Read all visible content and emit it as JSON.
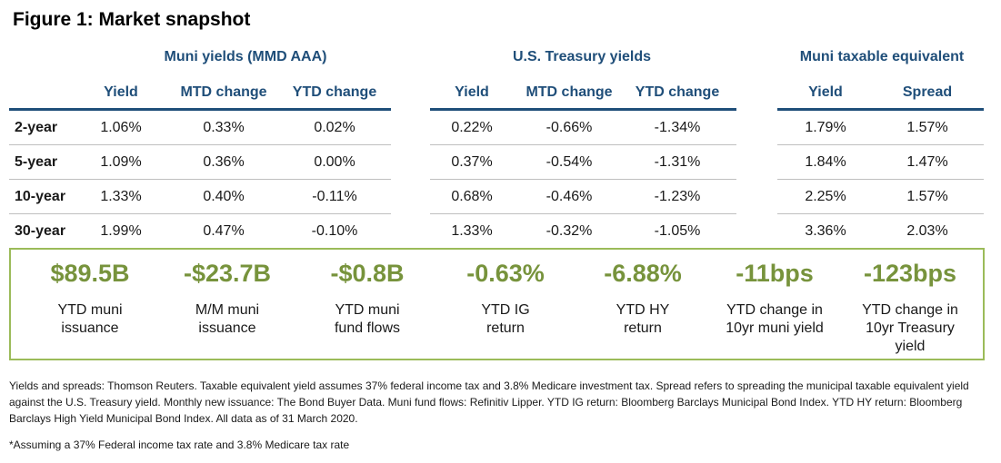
{
  "title": "Figure 1: Market snapshot",
  "groups": [
    {
      "label": "Muni yields (MMD AAA)",
      "columns": [
        "Yield",
        "MTD change",
        "YTD change"
      ]
    },
    {
      "label": "U.S. Treasury yields",
      "columns": [
        "Yield",
        "MTD change",
        "YTD change"
      ]
    },
    {
      "label": "Muni taxable equivalent",
      "columns": [
        "Yield",
        "Spread"
      ]
    }
  ],
  "rows": [
    {
      "label": "2-year",
      "values": [
        "1.06%",
        "0.33%",
        "0.02%",
        "0.22%",
        "-0.66%",
        "-1.34%",
        "1.79%",
        "1.57%"
      ]
    },
    {
      "label": "5-year",
      "values": [
        "1.09%",
        "0.36%",
        "0.00%",
        "0.37%",
        "-0.54%",
        "-1.31%",
        "1.84%",
        "1.47%"
      ]
    },
    {
      "label": "10-year",
      "values": [
        "1.33%",
        "0.40%",
        "-0.11%",
        "0.68%",
        "-0.46%",
        "-1.23%",
        "2.25%",
        "1.57%"
      ]
    },
    {
      "label": "30-year",
      "values": [
        "1.99%",
        "0.47%",
        "-0.10%",
        "1.33%",
        "-0.32%",
        "-1.05%",
        "3.36%",
        "2.03%"
      ]
    }
  ],
  "stats": [
    {
      "value": "$89.5B",
      "label_lines": [
        "YTD muni",
        "issuance"
      ]
    },
    {
      "value": "-$23.7B",
      "label_lines": [
        "M/M muni",
        "issuance"
      ]
    },
    {
      "value": "-$0.8B",
      "label_lines": [
        "YTD muni",
        "fund flows"
      ]
    },
    {
      "value": "-0.63%",
      "label_lines": [
        "YTD IG",
        "return"
      ]
    },
    {
      "value": "-6.88%",
      "label_lines": [
        "YTD HY",
        "return"
      ]
    },
    {
      "value": "-11bps",
      "label_lines": [
        "YTD change in",
        "10yr muni yield"
      ]
    },
    {
      "value": "-123bps",
      "label_lines": [
        "YTD change in",
        "10yr Treasury",
        "yield"
      ]
    }
  ],
  "colors": {
    "header_blue": "#1f4e79",
    "stat_green": "#77933c",
    "box_border": "#9bbb59"
  },
  "footnote": "Yields and spreads: Thomson Reuters. Taxable equivalent yield assumes 37% federal income tax and 3.8% Medicare investment tax. Spread refers to spreading the municipal taxable equivalent yield against the U.S. Treasury yield. Monthly new issuance: The Bond Buyer Data. Muni fund flows: Refinitiv Lipper. YTD IG return: Bloomberg Barclays Municipal Bond Index. YTD HY return: Bloomberg Barclays High Yield Municipal Bond Index. All data as of 31 March 2020.",
  "footnote2": "*Assuming a 37% Federal income tax rate and 3.8% Medicare tax rate"
}
